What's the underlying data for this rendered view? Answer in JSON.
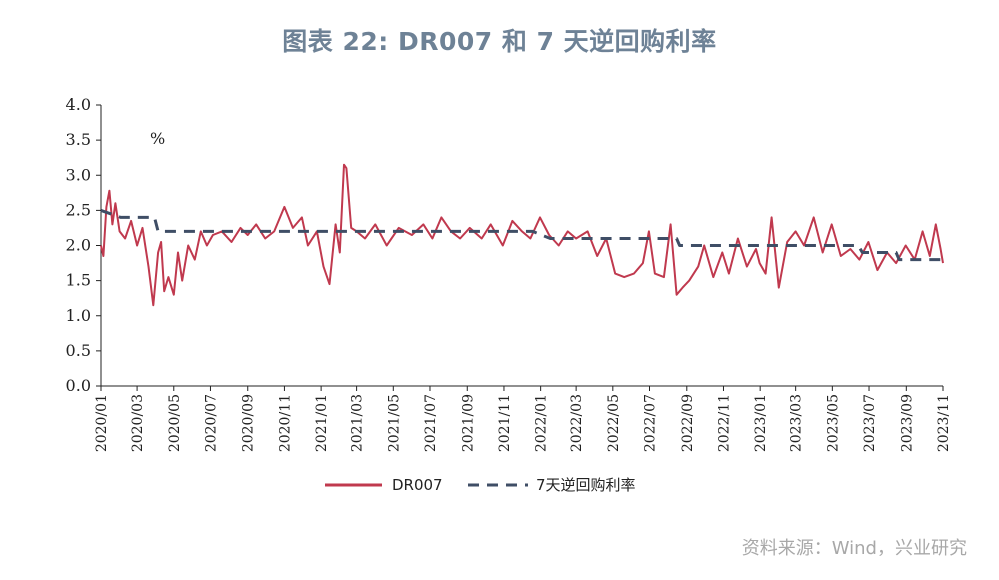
{
  "title": "图表 22: DR007 和 7 天逆回购利率",
  "source": "资料来源：Wind，兴业研究",
  "colors": {
    "dr007": "#c0394e",
    "repo": "#3f4e66",
    "title": "#6e8296",
    "source": "#a8a8a8"
  },
  "chart_data": {
    "type": "line",
    "unit_label": "%",
    "ylim": [
      0,
      4.0
    ],
    "yticks": [
      "0.0",
      "0.5",
      "1.0",
      "1.5",
      "2.0",
      "2.5",
      "3.0",
      "3.5",
      "4.0"
    ],
    "xlim": [
      "2020-01",
      "2023-11"
    ],
    "xticks": [
      "2020/01",
      "2020/03",
      "2020/05",
      "2020/07",
      "2020/09",
      "2020/11",
      "2021/01",
      "2021/03",
      "2021/05",
      "2021/07",
      "2021/09",
      "2021/11",
      "2022/01",
      "2022/03",
      "2022/05",
      "2022/07",
      "2022/09",
      "2022/11",
      "2023/01",
      "2023/03",
      "2023/05",
      "2023/07",
      "2023/09",
      "2023/11"
    ],
    "legend_position": "bottom-center",
    "grid": false,
    "series": [
      {
        "name": "DR007",
        "style": "solid",
        "x": [
          "2020-01-01",
          "2020-01-05",
          "2020-01-10",
          "2020-01-15",
          "2020-01-20",
          "2020-01-25",
          "2020-02-01",
          "2020-02-10",
          "2020-02-20",
          "2020-03-01",
          "2020-03-10",
          "2020-03-20",
          "2020-03-28",
          "2020-04-05",
          "2020-04-10",
          "2020-04-15",
          "2020-04-22",
          "2020-05-01",
          "2020-05-08",
          "2020-05-15",
          "2020-05-25",
          "2020-06-05",
          "2020-06-15",
          "2020-06-25",
          "2020-07-05",
          "2020-07-20",
          "2020-08-05",
          "2020-08-20",
          "2020-09-01",
          "2020-09-15",
          "2020-09-30",
          "2020-10-15",
          "2020-11-01",
          "2020-11-15",
          "2020-11-30",
          "2020-12-10",
          "2020-12-25",
          "2021-01-05",
          "2021-01-15",
          "2021-01-25",
          "2021-02-01",
          "2021-02-08",
          "2021-02-12",
          "2021-02-20",
          "2021-03-01",
          "2021-03-15",
          "2021-04-01",
          "2021-04-20",
          "2021-05-10",
          "2021-06-01",
          "2021-06-20",
          "2021-07-05",
          "2021-07-20",
          "2021-08-05",
          "2021-08-20",
          "2021-09-05",
          "2021-09-25",
          "2021-10-10",
          "2021-10-30",
          "2021-11-15",
          "2021-12-01",
          "2021-12-15",
          "2021-12-31",
          "2022-01-15",
          "2022-01-31",
          "2022-02-15",
          "2022-03-01",
          "2022-03-20",
          "2022-04-05",
          "2022-04-20",
          "2022-05-05",
          "2022-05-20",
          "2022-06-05",
          "2022-06-20",
          "2022-06-30",
          "2022-07-10",
          "2022-07-25",
          "2022-08-05",
          "2022-08-15",
          "2022-08-25",
          "2022-09-05",
          "2022-09-20",
          "2022-09-30",
          "2022-10-15",
          "2022-10-30",
          "2022-11-10",
          "2022-11-25",
          "2022-12-10",
          "2022-12-25",
          "2022-12-31",
          "2023-01-10",
          "2023-01-20",
          "2023-02-01",
          "2023-02-15",
          "2023-03-01",
          "2023-03-15",
          "2023-03-31",
          "2023-04-15",
          "2023-04-30",
          "2023-05-15",
          "2023-05-31",
          "2023-06-15",
          "2023-06-30",
          "2023-07-15",
          "2023-07-31",
          "2023-08-15",
          "2023-08-31",
          "2023-09-15",
          "2023-09-28",
          "2023-10-10",
          "2023-10-20",
          "2023-10-28",
          "2023-11-01"
        ],
        "values": [
          2.0,
          1.85,
          2.55,
          2.78,
          2.3,
          2.6,
          2.2,
          2.1,
          2.35,
          2.0,
          2.25,
          1.7,
          1.15,
          1.9,
          2.05,
          1.35,
          1.55,
          1.3,
          1.9,
          1.5,
          2.0,
          1.8,
          2.2,
          2.0,
          2.15,
          2.2,
          2.05,
          2.25,
          2.15,
          2.3,
          2.1,
          2.2,
          2.55,
          2.25,
          2.4,
          2.0,
          2.2,
          1.7,
          1.45,
          2.3,
          1.9,
          3.15,
          3.1,
          2.25,
          2.2,
          2.1,
          2.3,
          2.0,
          2.25,
          2.15,
          2.3,
          2.1,
          2.4,
          2.2,
          2.1,
          2.25,
          2.1,
          2.3,
          2.0,
          2.35,
          2.2,
          2.1,
          2.4,
          2.15,
          2.0,
          2.2,
          2.1,
          2.2,
          1.85,
          2.1,
          1.6,
          1.55,
          1.6,
          1.75,
          2.2,
          1.6,
          1.55,
          2.3,
          1.3,
          1.4,
          1.5,
          1.7,
          2.0,
          1.55,
          1.9,
          1.6,
          2.1,
          1.7,
          1.95,
          1.75,
          1.6,
          2.4,
          1.4,
          2.05,
          2.2,
          2.0,
          2.4,
          1.9,
          2.3,
          1.85,
          1.95,
          1.8,
          2.05,
          1.65,
          1.9,
          1.75,
          2.0,
          1.8,
          2.2,
          1.85,
          2.3,
          1.95,
          1.75
        ]
      },
      {
        "name": "7天逆回购利率",
        "style": "dashed",
        "x": [
          "2020-01-01",
          "2020-02-03",
          "2020-03-30",
          "2020-04-05",
          "2021-12-19",
          "2022-01-17",
          "2022-08-15",
          "2022-08-20",
          "2023-06-13",
          "2023-06-20",
          "2023-08-15",
          "2023-08-20",
          "2023-11-01"
        ],
        "values": [
          2.5,
          2.4,
          2.4,
          2.2,
          2.2,
          2.1,
          2.1,
          2.0,
          2.0,
          1.9,
          1.9,
          1.8,
          1.8
        ]
      }
    ]
  }
}
